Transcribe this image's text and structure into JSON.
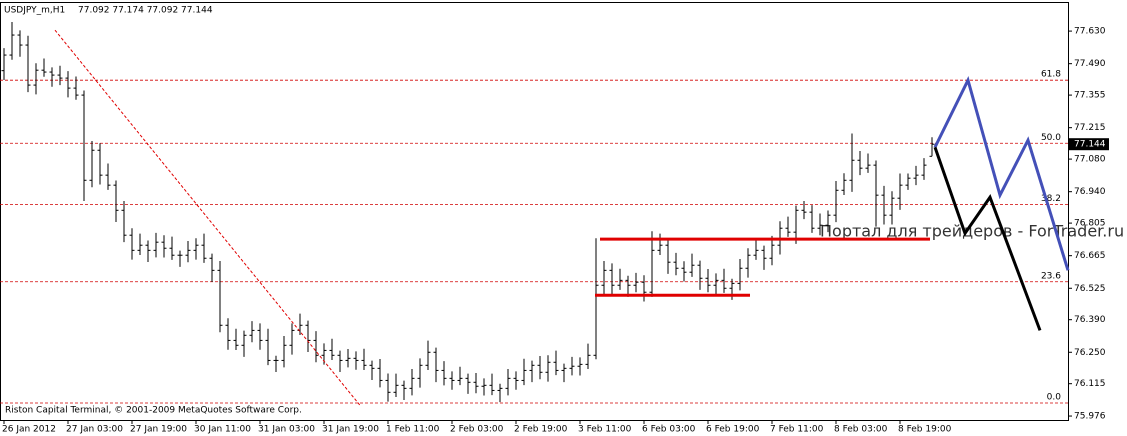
{
  "chart_data": {
    "type": "ohlc",
    "symbol": "USDJPY_m,H1",
    "ohlc_text": "77.092 77.174 77.092 77.144",
    "footer": "Riston Capital Terminal, © 2001-2009 MetaQuotes Software Corp.",
    "watermark": "Портал для трейдеров - ForTrader.ru",
    "current_price": 77.144,
    "color": "#000000",
    "xlim": [
      -0.5,
      133
    ],
    "ylim": [
      75.959,
      77.755
    ],
    "xticks": [
      {
        "value": 0,
        "label": "26 Jan 2012"
      },
      {
        "value": 8,
        "label": "27 Jan 03:00"
      },
      {
        "value": 16,
        "label": "27 Jan 19:00"
      },
      {
        "value": 24,
        "label": "30 Jan 11:00"
      },
      {
        "value": 32,
        "label": "31 Jan 03:00"
      },
      {
        "value": 40,
        "label": "31 Jan 19:00"
      },
      {
        "value": 48,
        "label": "1 Feb 11:00"
      },
      {
        "value": 56,
        "label": "2 Feb 03:00"
      },
      {
        "value": 64,
        "label": "2 Feb 19:00"
      },
      {
        "value": 72,
        "label": "3 Feb 11:00"
      },
      {
        "value": 80,
        "label": "6 Feb 03:00"
      },
      {
        "value": 88,
        "label": "6 Feb 19:00"
      },
      {
        "value": 96,
        "label": "7 Feb 11:00"
      },
      {
        "value": 104,
        "label": "8 Feb 03:00"
      },
      {
        "value": 112,
        "label": "8 Feb 19:00"
      }
    ],
    "yticks": [
      {
        "value": 77.63,
        "label": "77.630"
      },
      {
        "value": 77.49,
        "label": "77.490"
      },
      {
        "value": 77.355,
        "label": "77.355"
      },
      {
        "value": 77.215,
        "label": "77.215"
      },
      {
        "value": 77.08,
        "label": "77.080"
      },
      {
        "value": 76.94,
        "label": "76.940"
      },
      {
        "value": 76.805,
        "label": "76.805"
      },
      {
        "value": 76.665,
        "label": "76.665"
      },
      {
        "value": 76.525,
        "label": "76.525"
      },
      {
        "value": 76.39,
        "label": "76.390"
      },
      {
        "value": 76.25,
        "label": "76.250"
      },
      {
        "value": 76.115,
        "label": "76.115"
      },
      {
        "value": 75.976,
        "label": "75.976"
      }
    ],
    "open": [
      77.46,
      77.527,
      77.613,
      77.57,
      77.398,
      77.462,
      77.454,
      77.441,
      77.428,
      77.385,
      77.355,
      76.989,
      77.118,
      77.011,
      76.968,
      76.86,
      76.753,
      76.688,
      76.71,
      76.688,
      76.723,
      76.697,
      76.667,
      76.667,
      76.688,
      76.71,
      76.654,
      76.602,
      76.366,
      76.301,
      76.28,
      76.323,
      76.344,
      76.301,
      76.215,
      76.215,
      76.28,
      76.344,
      76.366,
      76.301,
      76.237,
      76.258,
      76.237,
      76.215,
      76.224,
      76.215,
      76.194,
      76.181,
      76.129,
      76.078,
      76.108,
      76.095,
      76.138,
      76.194,
      76.25,
      76.172,
      76.138,
      76.129,
      76.138,
      76.121,
      76.104,
      76.108,
      76.086,
      76.095,
      76.138,
      76.129,
      76.172,
      76.194,
      76.164,
      76.207,
      76.172,
      76.181,
      76.19,
      76.198,
      76.237,
      76.538,
      76.602,
      76.538,
      76.559,
      76.538,
      76.551,
      76.508,
      76.688,
      76.71,
      76.637,
      76.611,
      76.594,
      76.624,
      76.568,
      76.538,
      76.559,
      76.525,
      76.546,
      76.611,
      76.667,
      76.688,
      76.654,
      76.71,
      76.783,
      76.766,
      76.86,
      76.852,
      76.783,
      76.796,
      76.839,
      76.946,
      76.989,
      77.075,
      77.041,
      77.054,
      76.925,
      76.839,
      76.912,
      76.968,
      76.998,
      77.011,
      77.092
    ],
    "high": [
      77.557,
      77.669,
      77.633,
      77.61,
      77.492,
      77.512,
      77.474,
      77.481,
      77.458,
      77.435,
      77.375,
      77.158,
      77.148,
      77.061,
      76.988,
      76.9,
      76.783,
      76.76,
      76.73,
      76.763,
      76.753,
      76.747,
      76.687,
      76.728,
      76.74,
      76.76,
      76.674,
      76.642,
      76.396,
      76.351,
      76.343,
      76.384,
      76.374,
      76.351,
      76.235,
      76.32,
      76.374,
      76.416,
      76.386,
      76.341,
      76.288,
      76.308,
      76.257,
      76.264,
      76.254,
      76.265,
      76.214,
      76.221,
      76.159,
      76.158,
      76.128,
      76.178,
      76.224,
      76.3,
      76.27,
      76.212,
      76.168,
      76.188,
      76.158,
      76.161,
      76.138,
      76.158,
      76.115,
      76.178,
      76.168,
      76.222,
      76.214,
      76.234,
      76.237,
      76.257,
      76.201,
      76.23,
      76.228,
      76.287,
      76.74,
      76.642,
      76.632,
      76.609,
      76.579,
      76.591,
      76.581,
      76.77,
      76.76,
      76.73,
      76.677,
      76.641,
      76.674,
      76.644,
      76.608,
      76.589,
      76.609,
      76.566,
      76.651,
      76.697,
      76.738,
      76.708,
      76.75,
      76.813,
      76.833,
      76.88,
      76.9,
      76.882,
      76.846,
      76.859,
      76.986,
      77.019,
      77.19,
      77.115,
      77.104,
      77.074,
      76.965,
      76.942,
      77.018,
      77.018,
      77.051,
      77.084,
      77.174
    ],
    "low": [
      77.42,
      77.507,
      77.52,
      77.368,
      77.358,
      77.434,
      77.391,
      77.398,
      77.345,
      77.335,
      76.9,
      76.959,
      76.971,
      76.948,
      76.81,
      76.723,
      76.648,
      76.668,
      76.638,
      76.658,
      76.657,
      76.647,
      76.617,
      76.637,
      76.648,
      76.634,
      76.552,
      76.336,
      76.261,
      76.26,
      76.23,
      76.293,
      76.261,
      76.195,
      76.165,
      76.185,
      76.24,
      76.324,
      76.251,
      76.207,
      76.197,
      76.217,
      76.165,
      76.185,
      76.175,
      76.174,
      76.131,
      76.099,
      76.038,
      76.058,
      76.045,
      76.065,
      76.098,
      76.174,
      76.122,
      76.108,
      76.089,
      76.109,
      76.071,
      76.074,
      76.064,
      76.066,
      76.036,
      76.065,
      76.089,
      76.109,
      76.122,
      76.134,
      76.124,
      76.152,
      76.122,
      76.151,
      76.15,
      76.178,
      76.22,
      76.498,
      76.498,
      76.518,
      76.488,
      76.508,
      76.468,
      76.488,
      76.668,
      76.587,
      76.581,
      76.554,
      76.574,
      76.518,
      76.508,
      76.498,
      76.505,
      76.475,
      76.516,
      76.571,
      76.647,
      76.604,
      76.624,
      76.67,
      76.746,
      76.716,
      76.822,
      76.763,
      76.753,
      76.766,
      76.809,
      76.926,
      76.939,
      77.011,
      77.021,
      76.79,
      76.799,
      76.799,
      76.862,
      76.948,
      76.968,
      76.991,
      77.092
    ],
    "close": [
      77.527,
      77.613,
      77.57,
      77.398,
      77.462,
      77.454,
      77.441,
      77.428,
      77.385,
      77.355,
      76.989,
      77.118,
      77.011,
      76.968,
      76.86,
      76.753,
      76.688,
      76.71,
      76.688,
      76.723,
      76.697,
      76.667,
      76.667,
      76.688,
      76.71,
      76.654,
      76.602,
      76.366,
      76.301,
      76.28,
      76.323,
      76.344,
      76.301,
      76.215,
      76.215,
      76.28,
      76.344,
      76.366,
      76.301,
      76.237,
      76.258,
      76.237,
      76.215,
      76.224,
      76.215,
      76.194,
      76.181,
      76.129,
      76.078,
      76.108,
      76.095,
      76.138,
      76.194,
      76.25,
      76.172,
      76.138,
      76.129,
      76.138,
      76.121,
      76.104,
      76.108,
      76.086,
      76.095,
      76.138,
      76.129,
      76.172,
      76.194,
      76.164,
      76.207,
      76.172,
      76.181,
      76.19,
      76.198,
      76.237,
      76.538,
      76.602,
      76.538,
      76.559,
      76.538,
      76.551,
      76.508,
      76.688,
      76.71,
      76.637,
      76.611,
      76.594,
      76.624,
      76.568,
      76.538,
      76.559,
      76.525,
      76.546,
      76.611,
      76.667,
      76.688,
      76.654,
      76.71,
      76.783,
      76.766,
      76.86,
      76.852,
      76.783,
      76.796,
      76.839,
      76.946,
      76.989,
      77.075,
      77.041,
      77.054,
      76.925,
      76.839,
      76.912,
      76.968,
      76.998,
      77.011,
      77.054,
      77.144
    ],
    "fib_color": "#d00000",
    "fib_levels": [
      {
        "value": 77.419,
        "label": "61.8"
      },
      {
        "value": 77.148,
        "label": "50.0"
      },
      {
        "value": 76.885,
        "label": "38.2"
      },
      {
        "value": 76.553,
        "label": "23.6"
      },
      {
        "value": 76.032,
        "label": "0.0"
      }
    ],
    "trendline": {
      "color": "#e00000",
      "x": [
        6.375,
        44.5
      ],
      "y": [
        77.634,
        76.022
      ]
    },
    "levels": [
      {
        "color": "#e00000",
        "price": 76.736,
        "x": [
          74.5,
          115.75
        ]
      },
      {
        "color": "#e00000",
        "price": 76.495,
        "x": [
          73.875,
          93.25
        ]
      }
    ],
    "projections": [
      {
        "color": "#4450b8",
        "x": [
          116.375,
          120.5,
          124.5,
          128,
          133
        ],
        "y": [
          77.131,
          77.419,
          76.925,
          77.161,
          76.602
        ]
      },
      {
        "color": "#000000",
        "x": [
          116.375,
          120.125,
          123.25,
          129.5
        ],
        "y": [
          77.131,
          76.761,
          76.916,
          76.344
        ]
      }
    ]
  }
}
